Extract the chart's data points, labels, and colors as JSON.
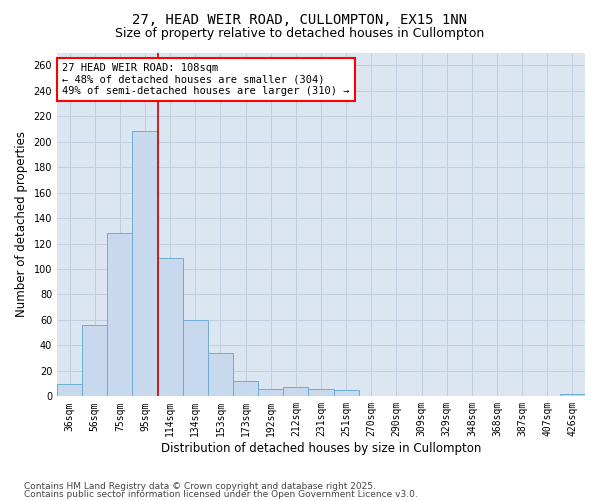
{
  "title_line1": "27, HEAD WEIR ROAD, CULLOMPTON, EX15 1NN",
  "title_line2": "Size of property relative to detached houses in Cullompton",
  "xlabel": "Distribution of detached houses by size in Cullompton",
  "ylabel": "Number of detached properties",
  "categories": [
    "36sqm",
    "56sqm",
    "75sqm",
    "95sqm",
    "114sqm",
    "134sqm",
    "153sqm",
    "173sqm",
    "192sqm",
    "212sqm",
    "231sqm",
    "251sqm",
    "270sqm",
    "290sqm",
    "309sqm",
    "329sqm",
    "348sqm",
    "368sqm",
    "387sqm",
    "407sqm",
    "426sqm"
  ],
  "values": [
    10,
    56,
    128,
    208,
    109,
    60,
    34,
    12,
    6,
    7,
    6,
    5,
    0,
    0,
    0,
    0,
    0,
    0,
    0,
    0,
    2
  ],
  "bar_color": "#c8d9ee",
  "bar_edge_color": "#6baed6",
  "grid_color": "#c0cfe0",
  "background_color": "#dce6f1",
  "vline_x": 3.5,
  "vline_color": "#cc0000",
  "annotation_text": "27 HEAD WEIR ROAD: 108sqm\n← 48% of detached houses are smaller (304)\n49% of semi-detached houses are larger (310) →",
  "ylim": [
    0,
    270
  ],
  "yticks": [
    0,
    20,
    40,
    60,
    80,
    100,
    120,
    140,
    160,
    180,
    200,
    220,
    240,
    260
  ],
  "footer_line1": "Contains HM Land Registry data © Crown copyright and database right 2025.",
  "footer_line2": "Contains public sector information licensed under the Open Government Licence v3.0.",
  "title_fontsize": 10,
  "subtitle_fontsize": 9,
  "axis_label_fontsize": 8.5,
  "tick_fontsize": 7,
  "annotation_fontsize": 7.5,
  "footer_fontsize": 6.5
}
